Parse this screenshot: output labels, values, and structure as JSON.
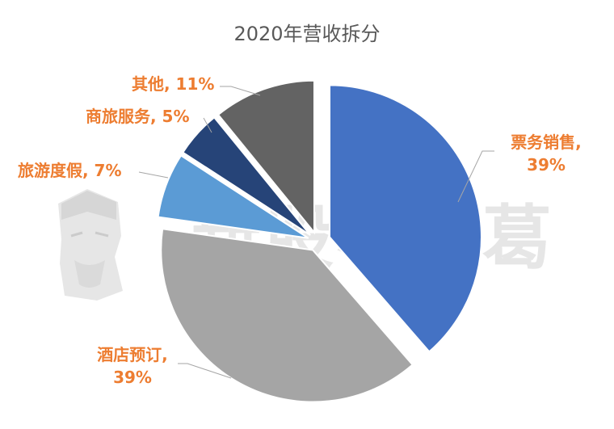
{
  "chart_data": {
    "type": "pie",
    "title": "2020年营收拆分",
    "slices": [
      {
        "label": "票务销售",
        "value": 39,
        "display": "39%",
        "color": "#4472C4"
      },
      {
        "label": "酒店预订",
        "value": 39,
        "display": "39%",
        "color": "#A5A5A5"
      },
      {
        "label": "旅游度假",
        "value": 7,
        "display": "7%",
        "color": "#5B9BD5"
      },
      {
        "label": "商旅服务",
        "value": 5,
        "display": "5%",
        "color": "#264478"
      },
      {
        "label": "其他",
        "value": 11,
        "display": "11%",
        "color": "#636363"
      }
    ],
    "label_color": "#ED7D31"
  },
  "watermark": {
    "text": "新股小诸葛"
  }
}
